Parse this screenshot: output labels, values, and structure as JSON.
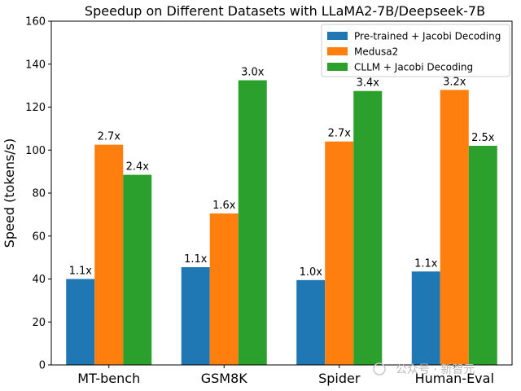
{
  "chart_data": {
    "type": "bar",
    "title": "Speedup on Different Datasets with LLaMA2-7B/Deepseek-7B",
    "xlabel": "",
    "ylabel": "Speed (tokens/s)",
    "ylim": [
      0,
      160
    ],
    "yticks": [
      0,
      20,
      40,
      60,
      80,
      100,
      120,
      140,
      160
    ],
    "categories": [
      "MT-bench",
      "GSM8K",
      "Spider",
      "Human-Eval"
    ],
    "legend_position": "top-right",
    "grid": false,
    "series": [
      {
        "name": "Pre-trained + Jacobi Decoding",
        "color": "#1f77b4",
        "values": [
          40,
          45.5,
          39.5,
          43.5
        ],
        "labels": [
          "1.1x",
          "1.1x",
          "1.0x",
          "1.1x"
        ]
      },
      {
        "name": "Medusa2",
        "color": "#ff7f0e",
        "values": [
          102.5,
          70.5,
          104,
          128
        ],
        "labels": [
          "2.7x",
          "1.6x",
          "2.7x",
          "3.2x"
        ]
      },
      {
        "name": "CLLM + Jacobi Decoding",
        "color": "#2ca02c",
        "values": [
          88.5,
          132.5,
          127.5,
          102
        ],
        "labels": [
          "2.4x",
          "3.0x",
          "3.4x",
          "2.5x"
        ]
      }
    ]
  },
  "watermark": "公众号 · 新智元"
}
